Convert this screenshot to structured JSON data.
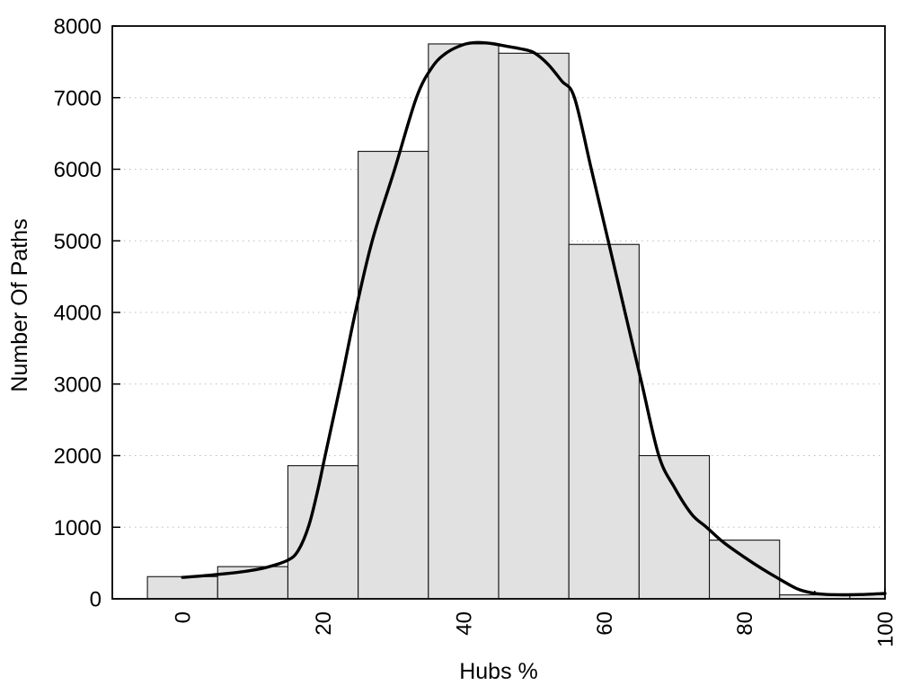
{
  "chart_data": {
    "type": "bar",
    "subtype": "histogram-with-density-curve",
    "title": "",
    "xlabel": "Hubs %",
    "ylabel": "Number Of Paths",
    "xlim": [
      -10,
      100
    ],
    "ylim": [
      0,
      8000
    ],
    "x_tick_values": [
      0,
      20,
      40,
      60,
      80,
      100
    ],
    "x_tick_labels": [
      "0",
      "20",
      "40",
      "60",
      "80",
      "100"
    ],
    "x_minor_tick_values": [
      10,
      30,
      50,
      70,
      90
    ],
    "x_tick_label_rotation_deg": -90,
    "y_tick_values": [
      0,
      1000,
      2000,
      3000,
      4000,
      5000,
      6000,
      7000,
      8000
    ],
    "y_tick_labels": [
      "0",
      "1000",
      "2000",
      "3000",
      "4000",
      "5000",
      "6000",
      "7000",
      "8000"
    ],
    "grid": {
      "show": true,
      "style": "dotted",
      "orientation": "horizontal",
      "lines_at": [
        1000,
        2000,
        3000,
        4000,
        5000,
        6000,
        7000
      ]
    },
    "legend": {
      "show": false
    },
    "bars": {
      "bin_width": 10,
      "centers": [
        0,
        10,
        20,
        30,
        40,
        50,
        60,
        70,
        80,
        90,
        100
      ],
      "heights": [
        310,
        450,
        1860,
        6250,
        7750,
        7620,
        4950,
        2000,
        820,
        55,
        70
      ],
      "note": "first bin spans -5 to 5; last bin clipped at x=100"
    },
    "density_curve": {
      "points": [
        [
          0,
          300
        ],
        [
          3,
          322
        ],
        [
          6,
          350
        ],
        [
          9,
          385
        ],
        [
          12,
          440
        ],
        [
          15,
          540
        ],
        [
          16.5,
          680
        ],
        [
          18,
          1030
        ],
        [
          19.3,
          1540
        ],
        [
          20.3,
          2000
        ],
        [
          22.5,
          3000
        ],
        [
          24.6,
          4000
        ],
        [
          27,
          5000
        ],
        [
          30.2,
          6000
        ],
        [
          33.3,
          7000
        ],
        [
          35.5,
          7420
        ],
        [
          37.5,
          7620
        ],
        [
          40,
          7740
        ],
        [
          42,
          7770
        ],
        [
          44,
          7755
        ],
        [
          46,
          7720
        ],
        [
          48,
          7685
        ],
        [
          50,
          7630
        ],
        [
          52,
          7470
        ],
        [
          54,
          7230
        ],
        [
          55.8,
          7000
        ],
        [
          58.2,
          6000
        ],
        [
          60.6,
          5000
        ],
        [
          63,
          4000
        ],
        [
          65.4,
          3000
        ],
        [
          67.8,
          2000
        ],
        [
          70,
          1560
        ],
        [
          72.5,
          1180
        ],
        [
          74.6,
          1000
        ],
        [
          77,
          790
        ],
        [
          80,
          580
        ],
        [
          82.5,
          420
        ],
        [
          85,
          275
        ],
        [
          87.5,
          140
        ],
        [
          89.5,
          85
        ],
        [
          91.5,
          62
        ],
        [
          94,
          57
        ],
        [
          96.5,
          60
        ],
        [
          100,
          75
        ]
      ]
    },
    "colors": {
      "background": "#ffffff",
      "bar_fill": "#e1e1e1",
      "bar_border": "#141414",
      "curve": "#000000",
      "grid": "#bbbbbb",
      "frame": "#000000",
      "text": "#000000"
    }
  }
}
